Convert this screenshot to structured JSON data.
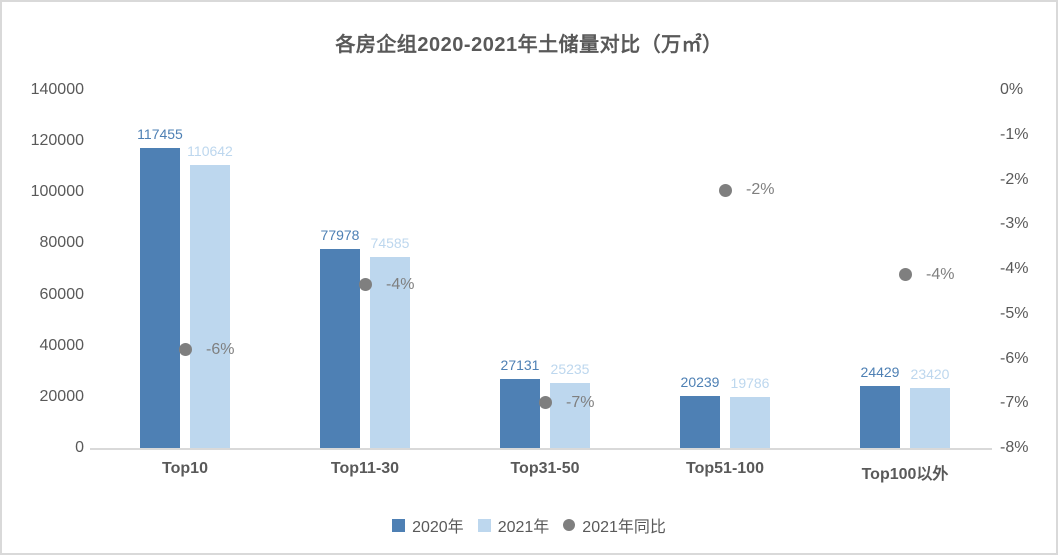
{
  "chart_data": {
    "type": "bar",
    "title": "各房企组2020-2021年土储量对比（万㎡）",
    "categories": [
      "Top10",
      "Top11-30",
      "Top31-50",
      "Top51-100",
      "Top100以外"
    ],
    "series": [
      {
        "name": "2020年",
        "type": "bar",
        "color": "#4E80B4",
        "values": [
          117455,
          77978,
          27131,
          20239,
          24429
        ]
      },
      {
        "name": "2021年",
        "type": "bar",
        "color": "#BDD7EE",
        "values": [
          110642,
          74585,
          25235,
          19786,
          23420
        ]
      },
      {
        "name": "2021年同比",
        "type": "scatter",
        "color": "#7F7F7F",
        "axis": "right",
        "values_pct": [
          -5.8,
          -4.35,
          -6.99,
          -2.24,
          -4.13
        ],
        "labels": [
          "-6%",
          "-4%",
          "-7%",
          "-2%",
          "-4%"
        ]
      }
    ],
    "left_axis": {
      "min": 0,
      "max": 140000,
      "step": 20000,
      "ticks": [
        "0",
        "20000",
        "40000",
        "60000",
        "80000",
        "100000",
        "120000",
        "140000"
      ]
    },
    "right_axis": {
      "min": -8,
      "max": 0,
      "step": 1,
      "ticks": [
        "0%",
        "-1%",
        "-2%",
        "-3%",
        "-4%",
        "-5%",
        "-6%",
        "-7%",
        "-8%"
      ]
    },
    "legend_position": "bottom",
    "grid": false,
    "colors": {
      "axis_text": "#595959",
      "axis_line": "#D9D9D9",
      "dot_label": "#7F7F7F"
    }
  }
}
